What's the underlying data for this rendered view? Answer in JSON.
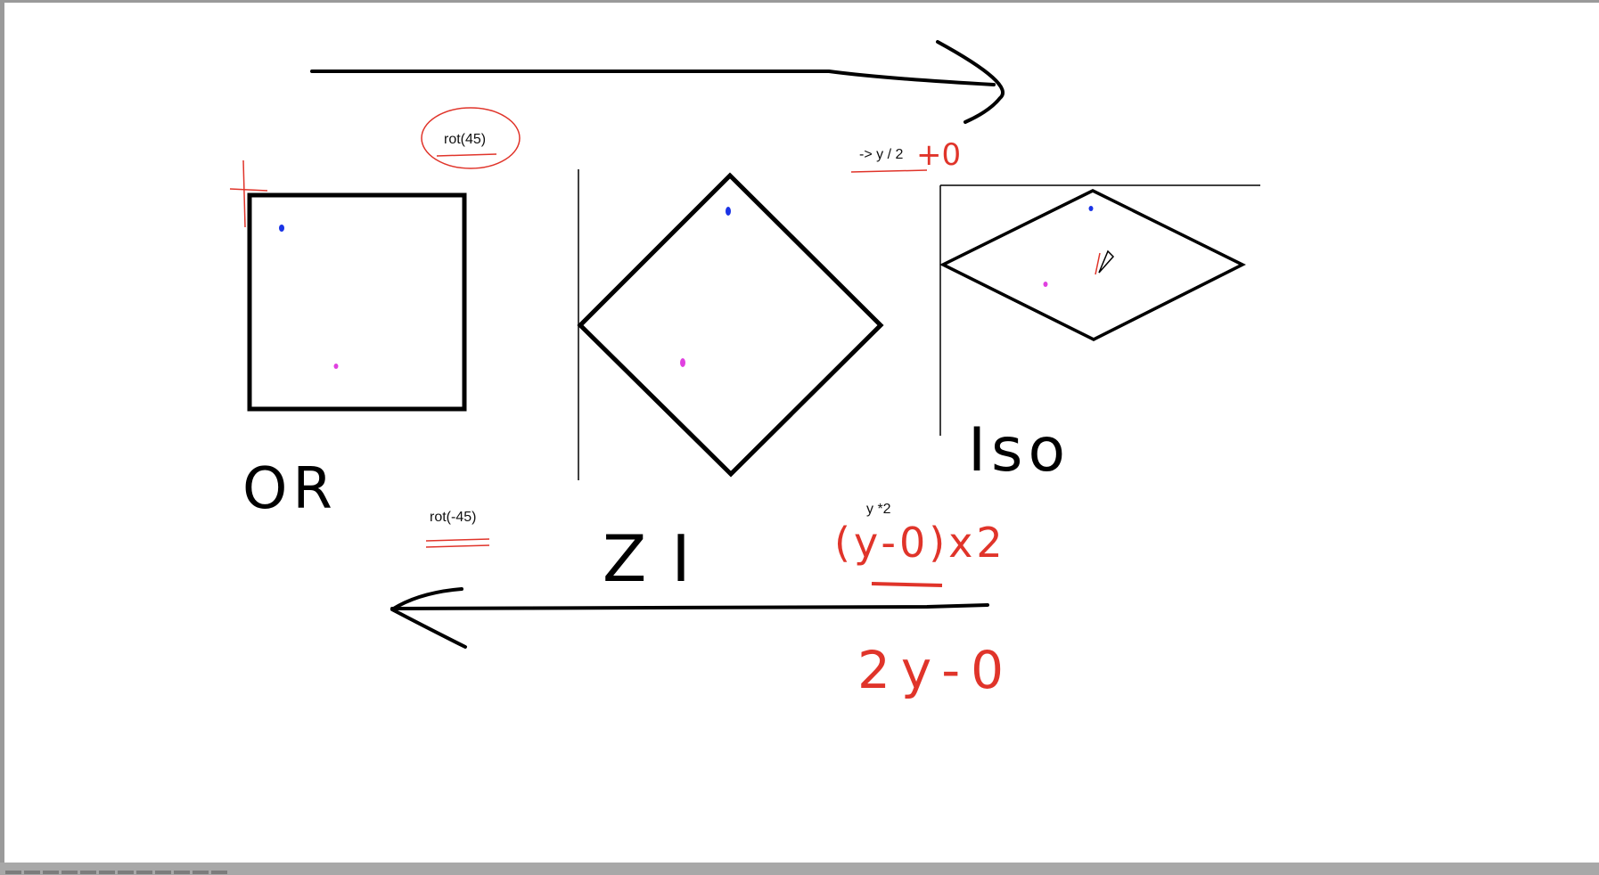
{
  "labels": {
    "rot_pos": "rot(45)",
    "rot_neg": "rot(-45)",
    "y_div": "-> y / 2",
    "y_mul": "y *2"
  },
  "handwriting": {
    "or": "OR",
    "zi": "ZI",
    "iso": "Iso",
    "plus_zero": "+0",
    "formula": "(y-0)x2",
    "result": "2y-0"
  },
  "colors": {
    "ink": "#000000",
    "annotation": "#e0342a",
    "point_a": "#1a33e6",
    "point_b": "#e040e0"
  }
}
